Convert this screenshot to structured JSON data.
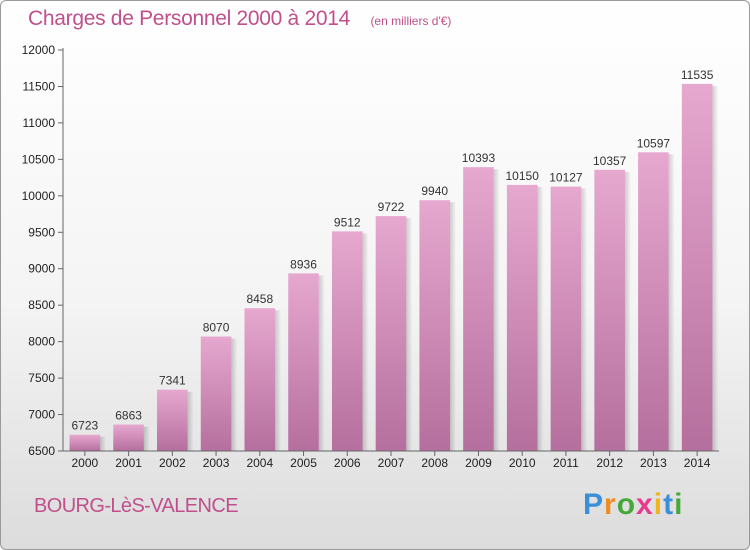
{
  "chart_data": {
    "type": "bar",
    "title": "Charges de Personnel 2000 à 2014",
    "subtitle": "(en milliers d'€)",
    "categories": [
      "2000",
      "2001",
      "2002",
      "2003",
      "2004",
      "2005",
      "2006",
      "2007",
      "2008",
      "2009",
      "2010",
      "2011",
      "2012",
      "2013",
      "2014"
    ],
    "values": [
      6723,
      6863,
      7341,
      8070,
      8458,
      8936,
      9512,
      9722,
      9940,
      10393,
      10150,
      10127,
      10357,
      10597,
      11535
    ],
    "ylim": [
      6500,
      12000
    ],
    "yticks": [
      6500,
      7000,
      7500,
      8000,
      8500,
      9000,
      9500,
      10000,
      10500,
      11000,
      11500,
      12000
    ],
    "grid": false,
    "bar_color_top": "#e6a8cf",
    "bar_color_bottom": "#b56f9e",
    "value_labels": true
  },
  "location": "BOURG-LèS-VALENCE",
  "brand": {
    "letters": [
      "P",
      "r",
      "o",
      "x",
      "i",
      "t",
      "i"
    ],
    "colors": [
      "#3a8fd8",
      "#f28a1c",
      "#46a83a",
      "#e63a8f",
      "#f2b41c",
      "#3a8fd8",
      "#46a83a"
    ]
  }
}
